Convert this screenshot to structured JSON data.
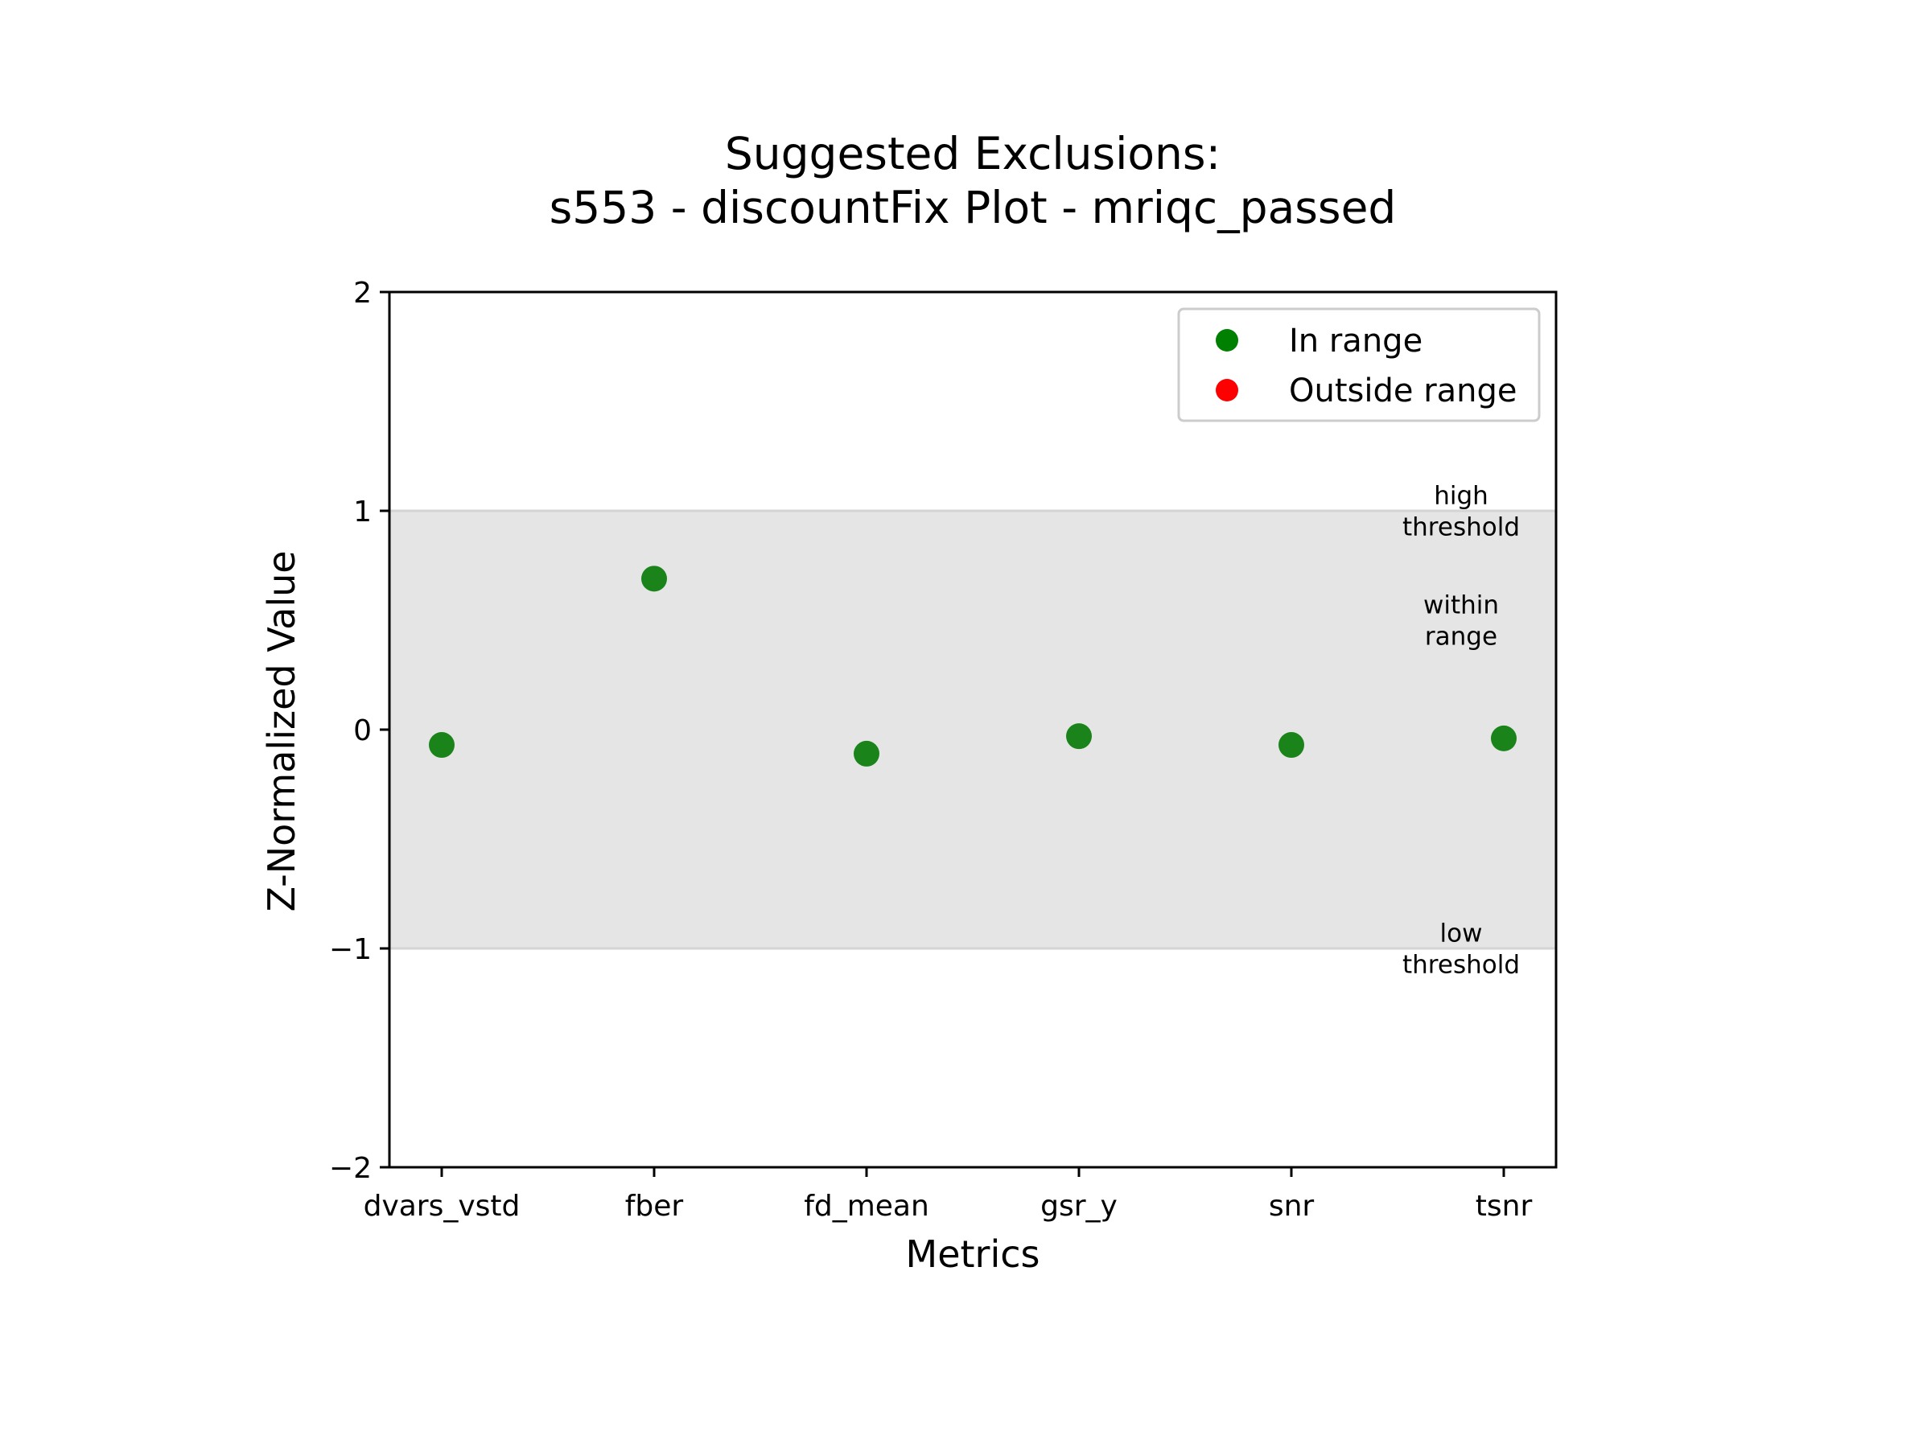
{
  "chart_data": {
    "type": "scatter",
    "title_lines": [
      "Suggested Exclusions:",
      "s553 - discountFix Plot - mriqc_passed"
    ],
    "xlabel": "Metrics",
    "ylabel": "Z-Normalized Value",
    "categories": [
      "dvars_vstd",
      "fber",
      "fd_mean",
      "gsr_y",
      "snr",
      "tsnr"
    ],
    "ylim": [
      -2,
      2
    ],
    "yticks": [
      2,
      1,
      0,
      -1,
      -2
    ],
    "ytick_labels": [
      "2",
      "1",
      "0",
      "−1",
      "−2"
    ],
    "threshold_band": {
      "low": -1,
      "high": 1,
      "color": "#e5e5e5"
    },
    "series": [
      {
        "name": "In range",
        "color": "#1a841a",
        "points": [
          {
            "x": "dvars_vstd",
            "y": -0.07
          },
          {
            "x": "fber",
            "y": 0.69
          },
          {
            "x": "fd_mean",
            "y": -0.11
          },
          {
            "x": "gsr_y",
            "y": -0.03
          },
          {
            "x": "snr",
            "y": -0.07
          },
          {
            "x": "tsnr",
            "y": -0.04
          }
        ]
      },
      {
        "name": "Outside range",
        "color": "#ff0000",
        "points": []
      }
    ],
    "legend": {
      "placement": "top-right",
      "entries": [
        {
          "label": "In range",
          "color": "#008000"
        },
        {
          "label": "Outside range",
          "color": "#ff0000"
        }
      ]
    },
    "annotations": [
      {
        "lines": [
          "high",
          "threshold"
        ],
        "y": 1
      },
      {
        "lines": [
          "within",
          "range"
        ],
        "y": 0.5
      },
      {
        "lines": [
          "low",
          "threshold"
        ],
        "y": -1
      }
    ],
    "grid": false
  }
}
